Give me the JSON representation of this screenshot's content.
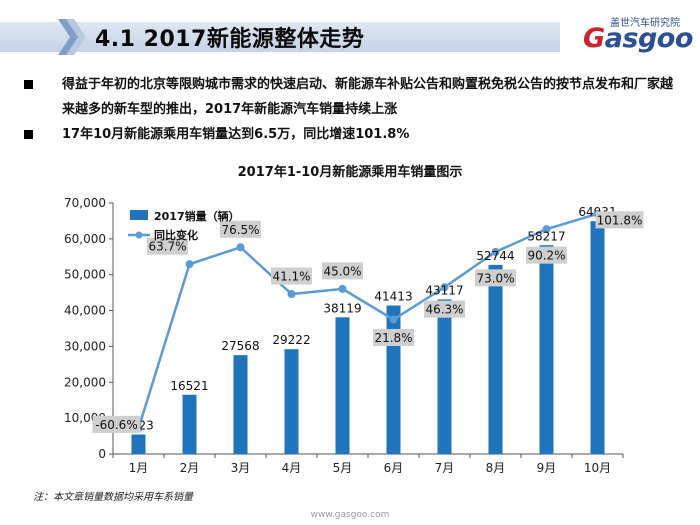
{
  "header": {
    "title": "4.1 2017新能源整体走势",
    "logo_main": "asgoo",
    "logo_letter": "G",
    "logo_sub": "盖世汽车研究院"
  },
  "bullets": [
    {
      "text": "得益于年初的北京等限购城市需求的快速启动、新能源车补贴公告和购置税免税公告的按节点发布和厂家越来越多的新车型的推出，2017年新能源汽车销量持续上涨"
    },
    {
      "text": "17年10月新能源乘用车销量达到6.5万，同比增速101.8%"
    }
  ],
  "chart_data": {
    "type": "bar",
    "title": "2017年1-10月新能源乘用车销量图示",
    "categories": [
      "1月",
      "2月",
      "3月",
      "4月",
      "5月",
      "6月",
      "7月",
      "8月",
      "9月",
      "10月"
    ],
    "y_ticks": [
      "0",
      "10,000",
      "20,000",
      "30,000",
      "40,000",
      "50,000",
      "60,000",
      "70,000"
    ],
    "ylim": [
      0,
      70000
    ],
    "legend_position": "top-left",
    "grid": false,
    "series": [
      {
        "name": "2017销量（辆）",
        "type": "bar",
        "color": "#1f74bb",
        "values": [
          5423,
          16521,
          27568,
          29222,
          38119,
          41413,
          43117,
          52744,
          58217,
          64931
        ],
        "labels": [
          "5423",
          "16521",
          "27568",
          "29222",
          "38119",
          "41413",
          "43117",
          "52744",
          "58217",
          "64931"
        ]
      },
      {
        "name": "同比变化",
        "type": "line",
        "color": "#5b9bd5",
        "values": [
          -60.6,
          63.7,
          76.5,
          41.1,
          45.0,
          21.8,
          46.3,
          73.0,
          90.2,
          101.8
        ],
        "labels": [
          "-60.6%",
          "63.7%",
          "76.5%",
          "41.1%",
          "45.0%",
          "21.8%",
          "46.3%",
          "73.0%",
          "90.2%",
          "101.8%"
        ]
      }
    ]
  },
  "footnote": "注：本文章销量数据均采用车系销量",
  "site": "www.gasgoo.com"
}
